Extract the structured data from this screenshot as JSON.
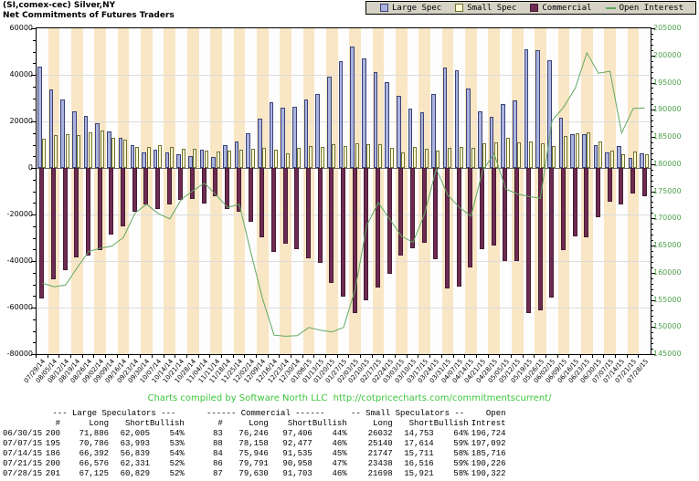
{
  "title": {
    "line1": "(SI,comex-cec) Silver,NY",
    "line2": "Net Commitments of Futures Traders"
  },
  "legend": [
    {
      "label": "Large Spec",
      "type": "square",
      "color": "#aab2de",
      "border": "#3a4276"
    },
    {
      "label": "Small Spec",
      "type": "square",
      "color": "#ffffd4",
      "border": "#71712f"
    },
    {
      "label": "Commercial",
      "type": "square",
      "color": "#6e2b51",
      "border": "#451a35"
    },
    {
      "label": "Open Interest",
      "type": "line",
      "color": "#61a861"
    }
  ],
  "chart_data": {
    "type": "bar",
    "title": "Net Commitments of Futures Traders",
    "x": [
      "07/29/14",
      "08/05/14",
      "08/12/14",
      "08/19/14",
      "08/26/14",
      "09/02/14",
      "09/09/14",
      "09/16/14",
      "09/23/14",
      "09/30/14",
      "10/07/14",
      "10/14/14",
      "10/21/14",
      "10/28/14",
      "11/04/14",
      "11/11/14",
      "11/18/14",
      "11/25/14",
      "12/02/14",
      "12/09/14",
      "12/16/14",
      "12/23/14",
      "12/30/14",
      "01/06/15",
      "01/13/15",
      "01/20/15",
      "01/27/15",
      "02/03/15",
      "02/10/15",
      "02/17/15",
      "02/24/15",
      "03/03/15",
      "03/10/15",
      "03/17/15",
      "03/24/15",
      "03/31/15",
      "04/07/15",
      "04/14/15",
      "04/21/15",
      "04/28/15",
      "05/05/15",
      "05/12/15",
      "05/19/15",
      "05/26/15",
      "06/02/15",
      "06/09/15",
      "06/16/15",
      "06/23/15",
      "06/30/15",
      "07/07/15",
      "07/14/15",
      "07/21/15",
      "07/28/15"
    ],
    "series": [
      {
        "name": "Large Spec",
        "type": "bar",
        "axis": "left",
        "values": [
          43500,
          33800,
          29500,
          24400,
          22300,
          19200,
          15800,
          12900,
          9900,
          6600,
          7900,
          6600,
          5700,
          5100,
          7700,
          4900,
          9900,
          11200,
          14900,
          21100,
          28200,
          26000,
          26200,
          29600,
          31800,
          39300,
          45800,
          52000,
          46900,
          41300,
          36800,
          31100,
          25600,
          23900,
          31800,
          43000,
          41900,
          34300,
          24400,
          22100,
          27300,
          29000,
          50800,
          50700,
          46100,
          21600,
          14500,
          14600,
          9881,
          6793,
          9553,
          4245,
          6296
        ]
      },
      {
        "name": "Small Spec",
        "type": "bar",
        "axis": "left",
        "values": [
          12600,
          14100,
          14400,
          14100,
          15400,
          16100,
          13000,
          12100,
          9100,
          8900,
          9800,
          8900,
          8200,
          8200,
          7600,
          7100,
          7600,
          7800,
          8100,
          8600,
          7900,
          6400,
          8600,
          9400,
          9100,
          10100,
          9600,
          10400,
          10100,
          10100,
          8600,
          6600,
          9100,
          8100,
          7400,
          8600,
          9100,
          8600,
          10400,
          11100,
          12800,
          11100,
          11400,
          10600,
          9600,
          13800,
          15000,
          15200,
          11279,
          7526,
          6036,
          6922,
          5777
        ]
      },
      {
        "name": "Commercial",
        "type": "bar",
        "axis": "left",
        "values": [
          -56100,
          -47900,
          -43900,
          -38500,
          -37700,
          -35300,
          -28800,
          -25000,
          -19000,
          -15500,
          -17700,
          -15500,
          -13900,
          -13300,
          -15300,
          -12000,
          -17500,
          -19000,
          -23000,
          -29700,
          -36100,
          -32400,
          -34800,
          -39000,
          -40900,
          -49400,
          -55400,
          -62400,
          -57000,
          -51400,
          -45400,
          -37700,
          -34700,
          -32000,
          -39200,
          -51600,
          -51000,
          -42900,
          -34800,
          -33200,
          -40100,
          -40100,
          -62200,
          -61300,
          -55700,
          -35400,
          -29500,
          -29800,
          -21160,
          -14319,
          -15589,
          -11167,
          -12073
        ]
      },
      {
        "name": "Open Interest",
        "type": "line",
        "axis": "right",
        "values": [
          158100,
          157400,
          157700,
          160900,
          163900,
          164500,
          164900,
          166500,
          171000,
          172600,
          170900,
          169900,
          173500,
          175100,
          176500,
          174300,
          172000,
          172600,
          163700,
          155300,
          148500,
          148300,
          148400,
          149900,
          149400,
          149100,
          149900,
          156900,
          168700,
          172900,
          169800,
          166700,
          165600,
          170900,
          179100,
          174300,
          172000,
          170400,
          178800,
          181900,
          175400,
          174500,
          174000,
          173700,
          188000,
          190500,
          194000,
          200500,
          196724,
          197092,
          185716,
          190226,
          190322
        ]
      }
    ],
    "left_axis": {
      "min": -80000,
      "max": 60000,
      "tick": 20000,
      "minor_tick": 5000,
      "tick_labels": [
        "60000",
        "40000",
        "20000",
        "0",
        "-20000",
        "-40000",
        "-60000",
        "-80000"
      ]
    },
    "right_axis": {
      "min": 145000,
      "max": 205000,
      "tick": 5000,
      "minor_tick": 1000,
      "tick_labels": [
        "205000",
        "200000",
        "195000",
        "190000",
        "185000",
        "180000",
        "175000",
        "170000",
        "165000",
        "160000",
        "155000",
        "150000",
        "145000"
      ]
    },
    "grid": true,
    "legend_position": "top-right",
    "stripe_colors": {
      "even": "#fdfdfd",
      "odd": "#f9e6c5"
    },
    "line_color": "#61a861",
    "right_label_color": "#4c9e4c"
  },
  "footer": {
    "text": "Charts compiled by Software North LLC  http://cotpricecharts.com/commitmentscurrent/"
  },
  "table": {
    "group_headers": [
      "--- Large Speculators ---",
      "------ Commercial ------",
      "-- Small Speculators --",
      "Open"
    ],
    "col_headers": [
      "",
      "#",
      "Long",
      "Short",
      "Bullish",
      "#",
      "Long",
      "Short",
      "Bullish",
      "Long",
      "Short",
      "Bullish",
      "Intrest"
    ],
    "rows": [
      [
        "06/30/15",
        "200",
        "71,886",
        "62,005",
        "54%",
        "83",
        "76,246",
        "97,406",
        "44%",
        "26032",
        "14,753",
        "64%",
        "196,724"
      ],
      [
        "07/07/15",
        "195",
        "70,786",
        "63,993",
        "53%",
        "88",
        "78,158",
        "92,477",
        "46%",
        "25140",
        "17,614",
        "59%",
        "197,092"
      ],
      [
        "07/14/15",
        "186",
        "66,392",
        "56,839",
        "54%",
        "84",
        "75,946",
        "91,535",
        "45%",
        "21747",
        "15,711",
        "58%",
        "185,716"
      ],
      [
        "07/21/15",
        "200",
        "66,576",
        "62,331",
        "52%",
        "86",
        "79,791",
        "90,958",
        "47%",
        "23438",
        "16,516",
        "59%",
        "190,226"
      ],
      [
        "07/28/15",
        "201",
        "67,125",
        "60,829",
        "52%",
        "87",
        "79,630",
        "91,703",
        "46%",
        "21698",
        "15,921",
        "58%",
        "190,322"
      ]
    ]
  }
}
